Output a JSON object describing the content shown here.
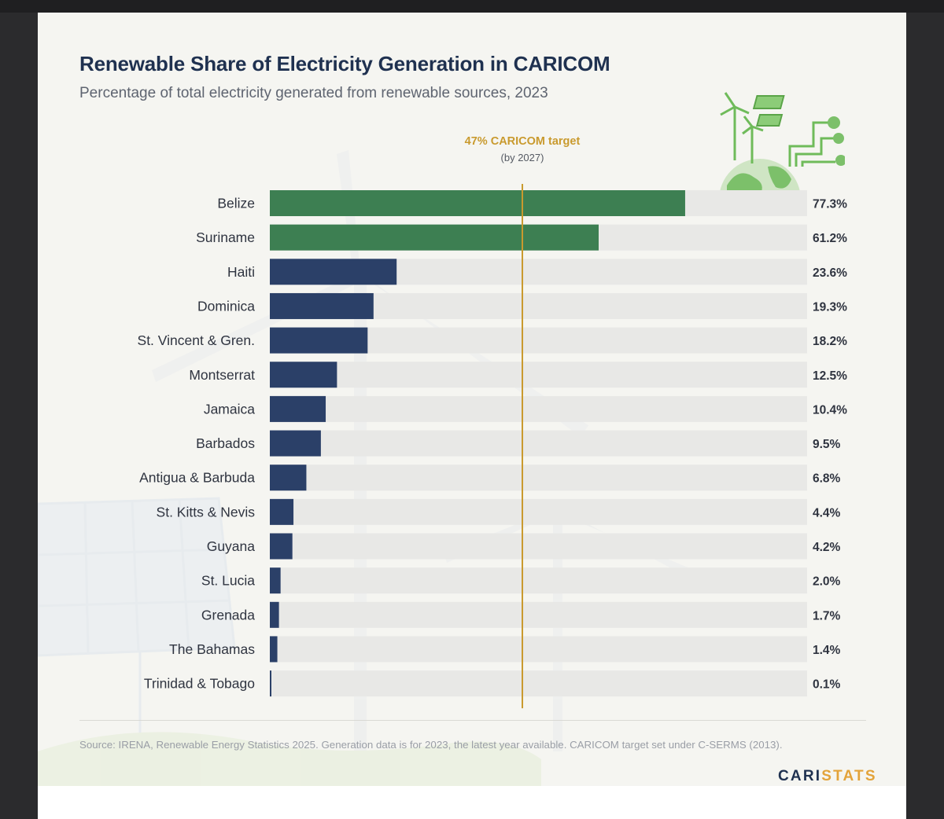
{
  "header": {
    "title": "Renewable Share of Electricity Generation in CARICOM",
    "subtitle": "Percentage of total electricity generated from renewable sources, 2023"
  },
  "target": {
    "label": "47% CARICOM target",
    "sublabel": "(by 2027)",
    "value": 47
  },
  "footer": {
    "source": "Source: IRENA, Renewable Energy Statistics 2025. Generation data is for 2023, the latest year available. CARICOM target set under C-SERMS (2013).",
    "brand_part1": "CARI",
    "brand_part2": "STATS"
  },
  "colors": {
    "above_target": "#3d7f52",
    "below_target": "#2b4068",
    "track": "#e8e8e6",
    "target_line": "#c99a2e"
  },
  "chart_data": {
    "type": "bar",
    "orientation": "horizontal",
    "title": "Renewable Share of Electricity Generation in CARICOM",
    "subtitle": "Percentage of total electricity generated from renewable sources, 2023",
    "xlim": [
      0,
      100
    ],
    "unit": "%",
    "reference_line": {
      "value": 47,
      "label": "47% CARICOM target",
      "sublabel": "(by 2027)"
    },
    "categories": [
      "Belize",
      "Suriname",
      "Haiti",
      "Dominica",
      "St. Vincent & Gren.",
      "Montserrat",
      "Jamaica",
      "Barbados",
      "Antigua & Barbuda",
      "St. Kitts & Nevis",
      "Guyana",
      "St. Lucia",
      "Grenada",
      "The Bahamas",
      "Trinidad & Tobago"
    ],
    "values": [
      77.3,
      61.2,
      23.6,
      19.3,
      18.2,
      12.5,
      10.4,
      9.5,
      6.8,
      4.4,
      4.2,
      2.0,
      1.7,
      1.4,
      0.1
    ],
    "value_labels": [
      "77.3%",
      "61.2%",
      "23.6%",
      "19.3%",
      "18.2%",
      "12.5%",
      "10.4%",
      "9.5%",
      "6.8%",
      "4.4%",
      "4.2%",
      "2.0%",
      "1.7%",
      "1.4%",
      "0.1%"
    ]
  }
}
